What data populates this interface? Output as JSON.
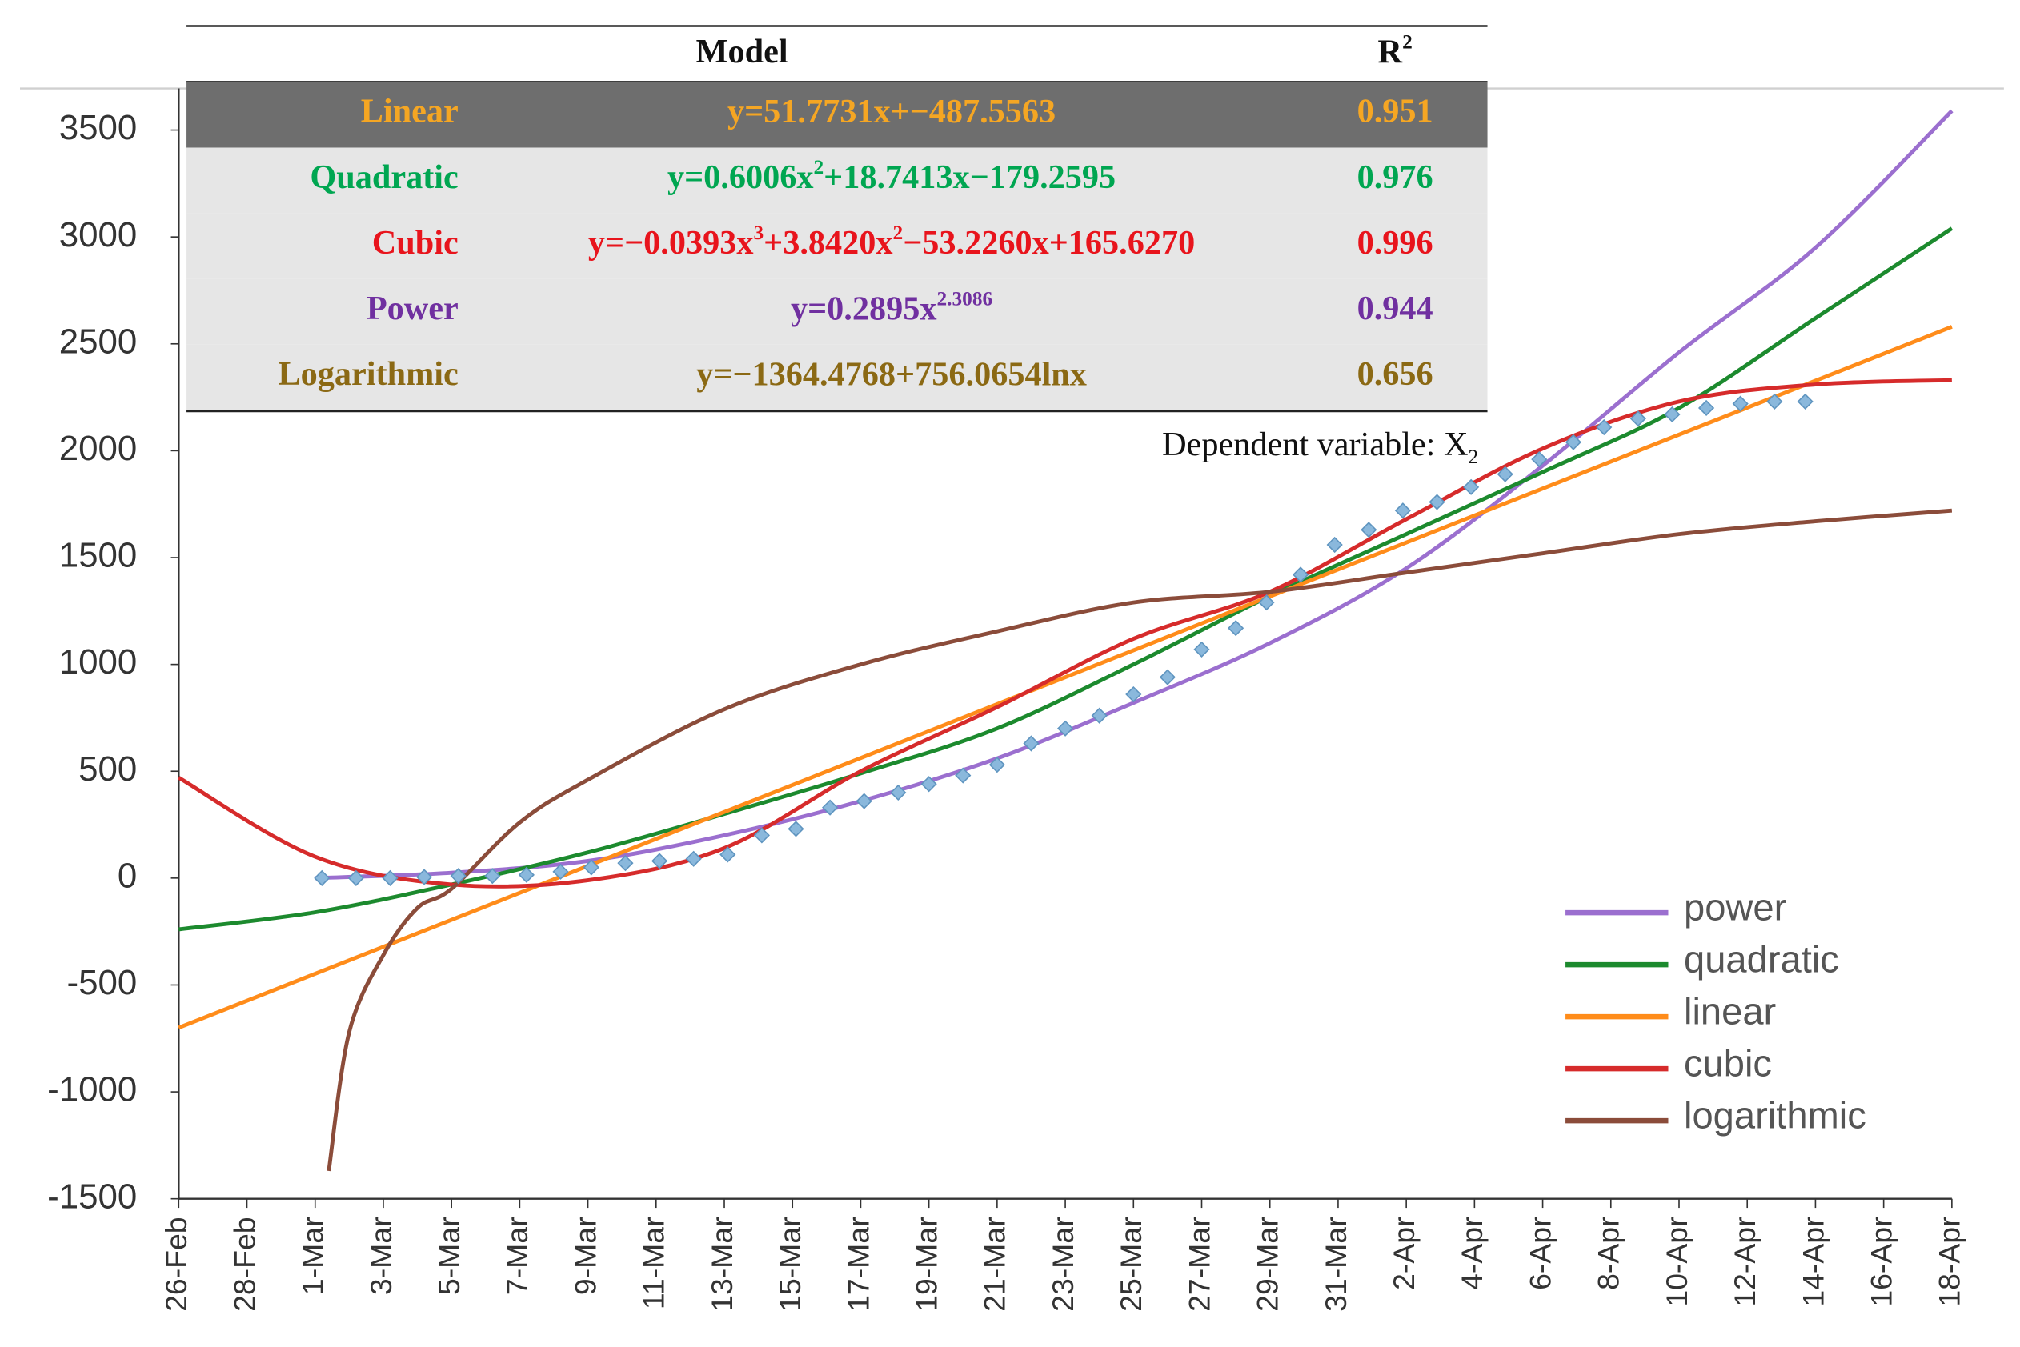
{
  "chart_data": {
    "type": "line",
    "xlim": [
      0,
      52
    ],
    "ylim": [
      -1500,
      3500
    ],
    "yticks": [
      -1500,
      -1000,
      -500,
      0,
      500,
      1000,
      1500,
      2000,
      2500,
      3000,
      3500
    ],
    "xticks": [
      {
        "value": 0,
        "label": "26-Feb"
      },
      {
        "value": 2,
        "label": "28-Feb"
      },
      {
        "value": 4,
        "label": "1-Mar"
      },
      {
        "value": 6,
        "label": "3-Mar"
      },
      {
        "value": 8,
        "label": "5-Mar"
      },
      {
        "value": 10,
        "label": "7-Mar"
      },
      {
        "value": 12,
        "label": "9-Mar"
      },
      {
        "value": 14,
        "label": "11-Mar"
      },
      {
        "value": 16,
        "label": "13-Mar"
      },
      {
        "value": 18,
        "label": "15-Mar"
      },
      {
        "value": 20,
        "label": "17-Mar"
      },
      {
        "value": 22,
        "label": "19-Mar"
      },
      {
        "value": 24,
        "label": "21-Mar"
      },
      {
        "value": 26,
        "label": "23-Mar"
      },
      {
        "value": 28,
        "label": "25-Mar"
      },
      {
        "value": 30,
        "label": "27-Mar"
      },
      {
        "value": 32,
        "label": "29-Mar"
      },
      {
        "value": 34,
        "label": "31-Mar"
      },
      {
        "value": 36,
        "label": "2-Apr"
      },
      {
        "value": 38,
        "label": "4-Apr"
      },
      {
        "value": 40,
        "label": "6-Apr"
      },
      {
        "value": 42,
        "label": "8-Apr"
      },
      {
        "value": 44,
        "label": "10-Apr"
      },
      {
        "value": 46,
        "label": "12-Apr"
      },
      {
        "value": 48,
        "label": "14-Apr"
      },
      {
        "value": 50,
        "label": "16-Apr"
      },
      {
        "value": 52,
        "label": "18-Apr"
      }
    ],
    "legend": "lower right",
    "series": [
      {
        "name": "power",
        "color": "#9b6fcf",
        "x": [
          4,
          8,
          12,
          16,
          20,
          24,
          28,
          32,
          36,
          40,
          44,
          48,
          52
        ],
        "values": [
          0,
          25,
          80,
          200,
          360,
          560,
          820,
          1100,
          1450,
          1930,
          2460,
          2950,
          3590
        ]
      },
      {
        "name": "quadratic",
        "color": "#1c8a2e",
        "x": [
          0,
          4,
          8,
          12,
          16,
          20,
          24,
          28,
          32,
          36,
          40,
          44,
          48,
          52
        ],
        "values": [
          -240,
          -160,
          -30,
          120,
          300,
          490,
          700,
          1000,
          1320,
          1610,
          1900,
          2200,
          2620,
          3040
        ]
      },
      {
        "name": "linear",
        "color": "#ff8c1a",
        "x": [
          0,
          52
        ],
        "values": [
          -700,
          2580
        ]
      },
      {
        "name": "cubic",
        "color": "#d62b2b",
        "x": [
          0,
          4,
          8,
          12,
          16,
          20,
          24,
          28,
          32,
          36,
          40,
          44,
          48,
          52
        ],
        "values": [
          470,
          100,
          -30,
          -10,
          140,
          500,
          800,
          1120,
          1340,
          1680,
          2010,
          2230,
          2310,
          2330
        ]
      },
      {
        "name": "logarithmic",
        "color": "#8b4c3a",
        "x": [
          4.4,
          5,
          6,
          7,
          8,
          10,
          12,
          16,
          20,
          24,
          28,
          32,
          36,
          40,
          44,
          48,
          52
        ],
        "values": [
          -1370,
          -720,
          -360,
          -140,
          -50,
          260,
          460,
          790,
          1000,
          1155,
          1290,
          1340,
          1430,
          1520,
          1610,
          1670,
          1720
        ]
      }
    ],
    "observed": {
      "color": "#8ab8dc",
      "x": [
        4.2,
        5.2,
        6.2,
        7.2,
        8.2,
        9.2,
        10.2,
        11.2,
        12.1,
        13.1,
        14.1,
        15.1,
        16.1,
        17.1,
        18.1,
        19.1,
        20.1,
        21.1,
        22.0,
        23.0,
        24.0,
        25.0,
        26.0,
        27.0,
        28.0,
        29.0,
        30.0,
        31.0,
        31.9,
        32.9,
        33.9,
        34.9,
        35.9,
        36.9,
        37.9,
        38.9,
        39.9,
        40.9,
        41.8,
        42.8,
        43.8,
        44.8,
        45.8,
        46.8,
        47.7
      ],
      "values": [
        0,
        0,
        0,
        5,
        10,
        10,
        15,
        30,
        50,
        70,
        80,
        90,
        110,
        200,
        230,
        330,
        360,
        400,
        440,
        480,
        530,
        630,
        700,
        760,
        860,
        940,
        1070,
        1170,
        1290,
        1420,
        1560,
        1630,
        1720,
        1760,
        1830,
        1890,
        1960,
        2040,
        2110,
        2150,
        2170,
        2200,
        2220,
        2230,
        2230
      ]
    },
    "table": {
      "header": {
        "model": "Model",
        "r2": [
          {
            "t": "R"
          },
          {
            "sup": "2"
          }
        ]
      },
      "rows": [
        {
          "model": "Linear",
          "color": "#f5a623",
          "highlighted": true,
          "equation": [
            {
              "t": "y=51.7731x+−487.5563"
            }
          ],
          "r2": 0.951
        },
        {
          "model": "Quadratic",
          "color": "#00a651",
          "equation": [
            {
              "t": "y=0.6006x"
            },
            {
              "sup": "2"
            },
            {
              "t": "+18.7413x−179.2595"
            }
          ],
          "r2": 0.976
        },
        {
          "model": "Cubic",
          "color": "#e8141c",
          "equation": [
            {
              "t": "y=−0.0393x"
            },
            {
              "sup": "3"
            },
            {
              "t": "+3.8420x"
            },
            {
              "sup": "2"
            },
            {
              "t": "−53.2260x+165.6270"
            }
          ],
          "r2": 0.996
        },
        {
          "model": "Power",
          "color": "#7030a0",
          "equation": [
            {
              "t": "y=0.2895x"
            },
            {
              "sup": "2.3086"
            }
          ],
          "r2": 0.944
        },
        {
          "model": "Logarithmic",
          "color": "#8b6914",
          "equation": [
            {
              "t": "y=−1364.4768+756.0654lnx"
            }
          ],
          "r2": 0.656
        }
      ],
      "note": [
        {
          "t": "Dependent variable: X"
        },
        {
          "sub": "2"
        }
      ]
    }
  }
}
